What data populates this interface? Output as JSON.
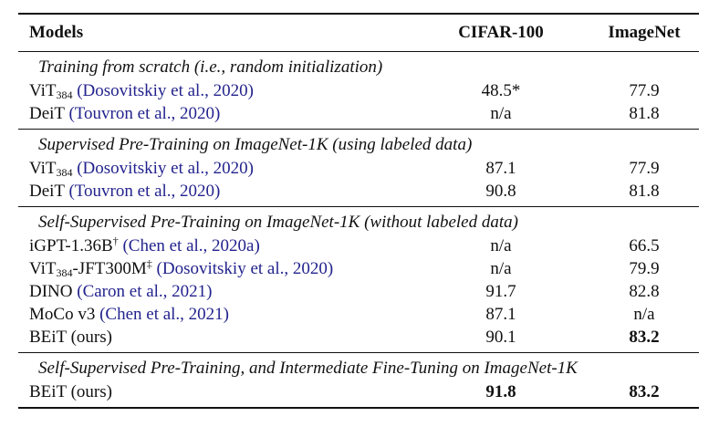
{
  "headers": {
    "models": "Models",
    "cifar": "CIFAR-100",
    "imagenet": "ImageNet"
  },
  "groups": [
    {
      "title": "Training from scratch (i.e., random initialization)",
      "rows": [
        {
          "name": "ViT",
          "sub": "384",
          "sup": "",
          "suffix": "",
          "citation": "(Dosovitskiy et al., 2020)",
          "cifar": "48.5*",
          "imagenet": "77.9"
        },
        {
          "name": "DeiT",
          "sub": "",
          "sup": "",
          "suffix": "",
          "citation": "(Touvron et al., 2020)",
          "cifar": "n/a",
          "imagenet": "81.8"
        }
      ]
    },
    {
      "title": "Supervised Pre-Training on ImageNet-1K (using labeled data)",
      "rows": [
        {
          "name": "ViT",
          "sub": "384",
          "sup": "",
          "suffix": "",
          "citation": "(Dosovitskiy et al., 2020)",
          "cifar": "87.1",
          "imagenet": "77.9"
        },
        {
          "name": "DeiT",
          "sub": "",
          "sup": "",
          "suffix": "",
          "citation": "(Touvron et al., 2020)",
          "cifar": "90.8",
          "imagenet": "81.8"
        }
      ]
    },
    {
      "title": "Self-Supervised Pre-Training on ImageNet-1K (without labeled data)",
      "rows": [
        {
          "name": "iGPT-1.36B",
          "sub": "",
          "sup": "†",
          "suffix": "",
          "citation": "(Chen et al., 2020a)",
          "cifar": "n/a",
          "imagenet": "66.5"
        },
        {
          "name": "ViT",
          "sub": "384",
          "sup": "",
          "suffix": "-JFT300M",
          "sup2": "‡",
          "citation": "(Dosovitskiy et al., 2020)",
          "cifar": "n/a",
          "imagenet": "79.9"
        },
        {
          "name": "DINO",
          "sub": "",
          "sup": "",
          "suffix": "",
          "citation": "(Caron et al., 2021)",
          "cifar": "91.7",
          "imagenet": "82.8"
        },
        {
          "name": "MoCo v3",
          "sub": "",
          "sup": "",
          "suffix": "",
          "citation": "(Chen et al., 2021)",
          "cifar": "87.1",
          "imagenet": "n/a"
        },
        {
          "name": "BEiT (ours)",
          "sub": "",
          "sup": "",
          "suffix": "",
          "citation": "",
          "cifar": "90.1",
          "imagenet": "83.2",
          "imagenet_bold": true
        }
      ]
    },
    {
      "title": "Self-Supervised Pre-Training, and Intermediate Fine-Tuning on ImageNet-1K",
      "rows": [
        {
          "name": "BEiT (ours)",
          "sub": "",
          "sup": "",
          "suffix": "",
          "citation": "",
          "cifar": "91.8",
          "imagenet": "83.2",
          "cifar_bold": true,
          "imagenet_bold": true
        }
      ]
    }
  ]
}
